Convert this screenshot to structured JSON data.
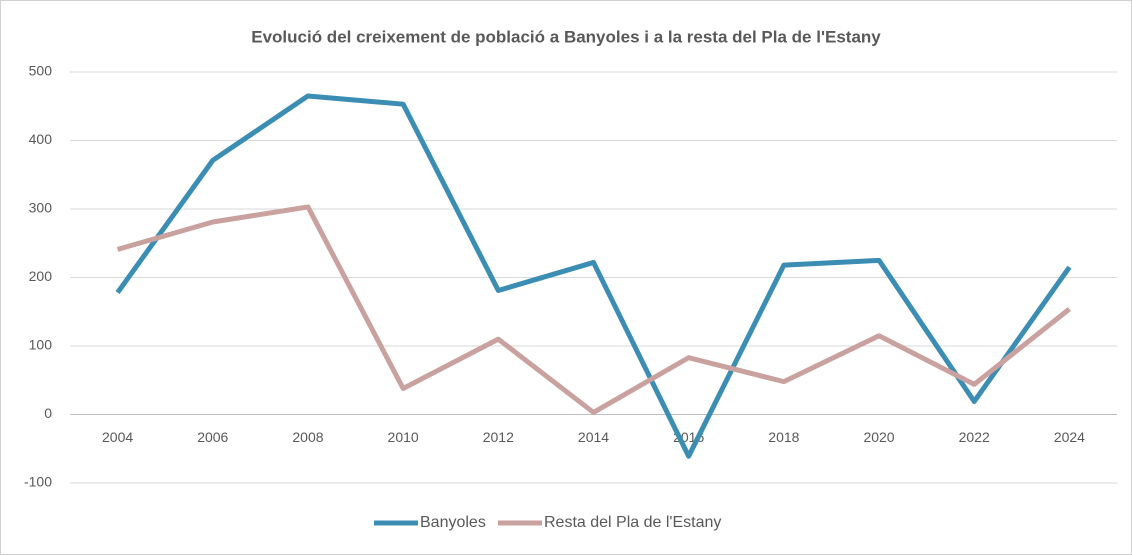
{
  "chart_data": {
    "type": "line",
    "title": "Evolució del creixement de població a Banyoles i a la resta del Pla de l'Estany",
    "categories": [
      "2004",
      "2006",
      "2008",
      "2010",
      "2012",
      "2014",
      "2016",
      "2018",
      "2020",
      "2022",
      "2024"
    ],
    "series": [
      {
        "name": "Banyoles",
        "color": "#3b8db3",
        "values": [
          178,
          371,
          465,
          453,
          181,
          222,
          -61,
          218,
          225,
          19,
          215
        ]
      },
      {
        "name": "Resta del Pla de l'Estany",
        "color": "#c9a2a0",
        "values": [
          241,
          281,
          303,
          38,
          110,
          3,
          83,
          48,
          115,
          44,
          154
        ]
      }
    ],
    "ylim": [
      -100,
      500
    ],
    "yticks": [
      -100,
      0,
      100,
      200,
      300,
      400,
      500
    ],
    "grid": true,
    "legend": "bottom"
  }
}
